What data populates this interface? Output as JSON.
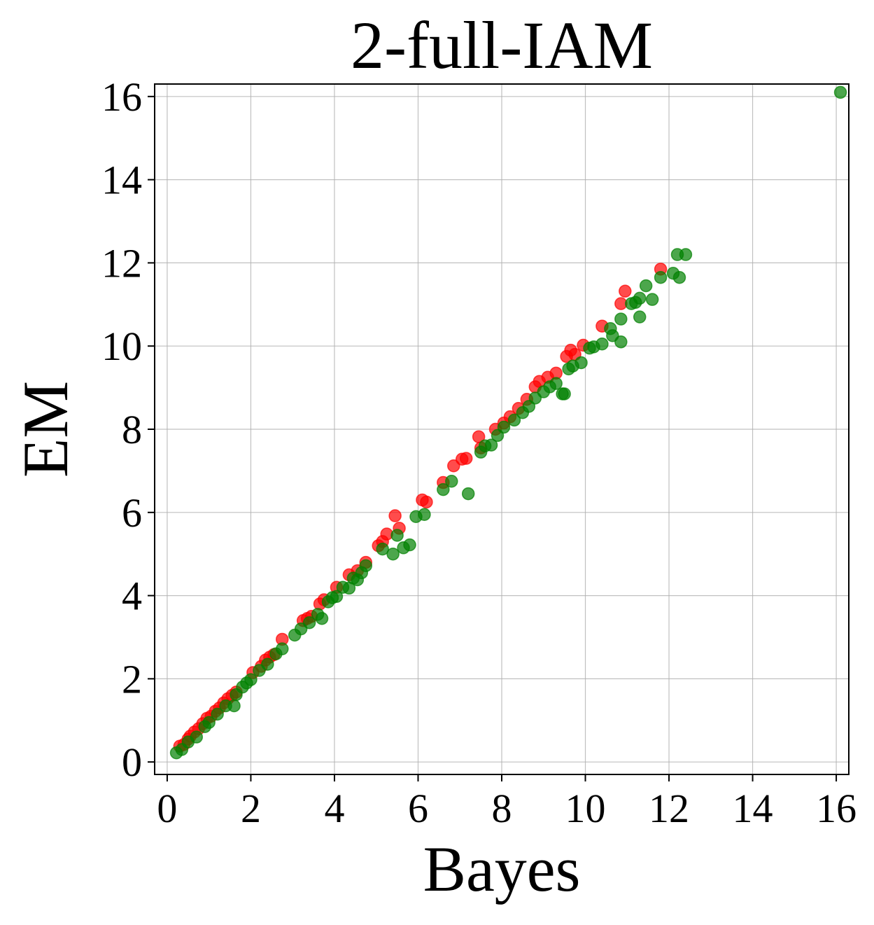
{
  "chart_data": {
    "type": "scatter",
    "title": "2-full-IAM",
    "xlabel": "Bayes",
    "ylabel": "EM",
    "xlim": [
      -0.3,
      16.3
    ],
    "ylim": [
      -0.3,
      16.3
    ],
    "xticks": [
      0,
      2,
      4,
      6,
      8,
      10,
      12,
      14,
      16
    ],
    "yticks": [
      0,
      2,
      4,
      6,
      8,
      10,
      12,
      14,
      16
    ],
    "grid": true,
    "marker_alpha": 0.7,
    "series": [
      {
        "color": "#ff0000",
        "points": [
          [
            0.3,
            0.38
          ],
          [
            0.4,
            0.42
          ],
          [
            0.5,
            0.55
          ],
          [
            0.55,
            0.62
          ],
          [
            0.65,
            0.72
          ],
          [
            0.75,
            0.8
          ],
          [
            0.85,
            0.92
          ],
          [
            0.95,
            1.05
          ],
          [
            1.05,
            1.1
          ],
          [
            1.15,
            1.22
          ],
          [
            1.25,
            1.3
          ],
          [
            1.35,
            1.42
          ],
          [
            1.45,
            1.52
          ],
          [
            1.55,
            1.6
          ],
          [
            1.65,
            1.68
          ],
          [
            2.05,
            2.15
          ],
          [
            2.25,
            2.3
          ],
          [
            2.35,
            2.45
          ],
          [
            2.45,
            2.52
          ],
          [
            2.55,
            2.58
          ],
          [
            2.75,
            2.95
          ],
          [
            3.25,
            3.4
          ],
          [
            3.35,
            3.45
          ],
          [
            3.45,
            3.5
          ],
          [
            3.65,
            3.8
          ],
          [
            3.75,
            3.9
          ],
          [
            4.05,
            4.2
          ],
          [
            4.35,
            4.5
          ],
          [
            4.55,
            4.6
          ],
          [
            4.75,
            4.8
          ],
          [
            5.05,
            5.2
          ],
          [
            5.15,
            5.3
          ],
          [
            5.25,
            5.48
          ],
          [
            5.45,
            5.92
          ],
          [
            5.55,
            5.62
          ],
          [
            6.1,
            6.3
          ],
          [
            6.2,
            6.25
          ],
          [
            6.6,
            6.72
          ],
          [
            6.85,
            7.12
          ],
          [
            7.05,
            7.28
          ],
          [
            7.15,
            7.3
          ],
          [
            7.45,
            7.82
          ],
          [
            7.5,
            7.55
          ],
          [
            7.85,
            8.0
          ],
          [
            8.05,
            8.15
          ],
          [
            8.2,
            8.3
          ],
          [
            8.4,
            8.5
          ],
          [
            8.6,
            8.72
          ],
          [
            8.8,
            9.02
          ],
          [
            8.9,
            9.15
          ],
          [
            9.1,
            9.25
          ],
          [
            9.3,
            9.35
          ],
          [
            9.55,
            9.75
          ],
          [
            9.65,
            9.9
          ],
          [
            9.75,
            9.8
          ],
          [
            9.95,
            10.02
          ],
          [
            10.4,
            10.48
          ],
          [
            10.85,
            11.02
          ],
          [
            10.95,
            11.32
          ],
          [
            11.8,
            11.85
          ]
        ]
      },
      {
        "color": "#008000",
        "points": [
          [
            0.22,
            0.22
          ],
          [
            0.35,
            0.3
          ],
          [
            0.5,
            0.48
          ],
          [
            0.7,
            0.6
          ],
          [
            0.9,
            0.85
          ],
          [
            1.0,
            0.95
          ],
          [
            1.2,
            1.15
          ],
          [
            1.4,
            1.35
          ],
          [
            1.6,
            1.35
          ],
          [
            1.65,
            1.62
          ],
          [
            1.8,
            1.8
          ],
          [
            1.9,
            1.9
          ],
          [
            2.0,
            1.98
          ],
          [
            2.2,
            2.2
          ],
          [
            2.4,
            2.35
          ],
          [
            2.6,
            2.6
          ],
          [
            2.75,
            2.72
          ],
          [
            3.05,
            3.05
          ],
          [
            3.2,
            3.2
          ],
          [
            3.4,
            3.35
          ],
          [
            3.6,
            3.55
          ],
          [
            3.7,
            3.45
          ],
          [
            3.85,
            3.85
          ],
          [
            3.95,
            3.95
          ],
          [
            4.05,
            3.98
          ],
          [
            4.2,
            4.2
          ],
          [
            4.35,
            4.18
          ],
          [
            4.45,
            4.42
          ],
          [
            4.55,
            4.38
          ],
          [
            4.65,
            4.55
          ],
          [
            4.75,
            4.72
          ],
          [
            5.15,
            5.12
          ],
          [
            5.4,
            5.0
          ],
          [
            5.5,
            5.45
          ],
          [
            5.65,
            5.15
          ],
          [
            5.8,
            5.22
          ],
          [
            5.95,
            5.9
          ],
          [
            6.15,
            5.95
          ],
          [
            6.6,
            6.55
          ],
          [
            6.8,
            6.75
          ],
          [
            7.2,
            6.45
          ],
          [
            7.5,
            7.45
          ],
          [
            7.6,
            7.6
          ],
          [
            7.75,
            7.62
          ],
          [
            7.9,
            7.85
          ],
          [
            8.05,
            8.05
          ],
          [
            8.3,
            8.22
          ],
          [
            8.5,
            8.4
          ],
          [
            8.65,
            8.55
          ],
          [
            8.8,
            8.75
          ],
          [
            9.0,
            8.9
          ],
          [
            9.15,
            9.02
          ],
          [
            9.3,
            9.1
          ],
          [
            9.45,
            8.85
          ],
          [
            9.5,
            8.85
          ],
          [
            9.6,
            9.45
          ],
          [
            9.7,
            9.52
          ],
          [
            9.9,
            9.6
          ],
          [
            10.1,
            9.95
          ],
          [
            10.2,
            9.98
          ],
          [
            10.4,
            10.05
          ],
          [
            10.6,
            10.42
          ],
          [
            10.65,
            10.25
          ],
          [
            10.85,
            10.1
          ],
          [
            10.85,
            10.65
          ],
          [
            11.1,
            11.02
          ],
          [
            11.2,
            11.05
          ],
          [
            11.3,
            11.15
          ],
          [
            11.3,
            10.7
          ],
          [
            11.45,
            11.45
          ],
          [
            11.6,
            11.12
          ],
          [
            11.8,
            11.65
          ],
          [
            12.1,
            11.75
          ],
          [
            12.2,
            12.2
          ],
          [
            12.25,
            11.65
          ],
          [
            12.4,
            12.2
          ],
          [
            16.1,
            16.1
          ]
        ]
      }
    ]
  }
}
